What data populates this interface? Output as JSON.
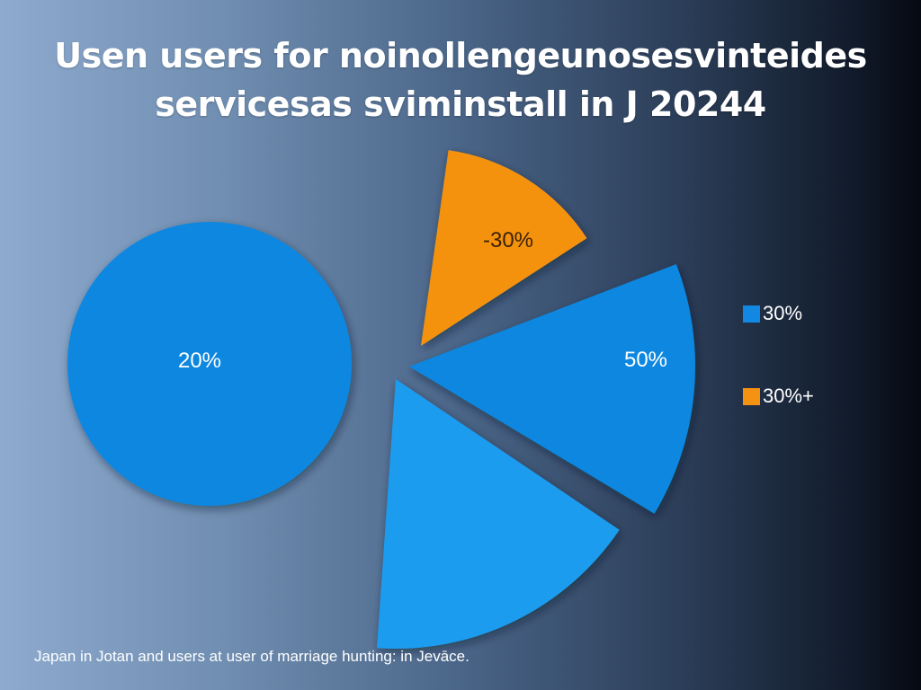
{
  "chart_data": {
    "type": "pie",
    "title": "Usen users for noinollengeunosesvinteides servicesas sviminstall in J 20244",
    "title_lines": [
      "Usen users for noinollengeunosesvinteides",
      "servicesas sviminstall in J 20244"
    ],
    "standalone_circle": {
      "label": "20%",
      "value": 20,
      "color": "#0a87e0"
    },
    "slices": [
      {
        "name": "orange-slice",
        "label": "-30%",
        "value": 30,
        "color": "#f59211",
        "label_color": "#3a2208"
      },
      {
        "name": "blue-slice",
        "label": "50%",
        "value": 50,
        "color": "#0a87e0",
        "label_color": "#ffffff"
      },
      {
        "name": "light-blue-slice",
        "label": "",
        "value": 20,
        "color": "#1d9cee",
        "label_color": "#ffffff"
      }
    ],
    "legend": [
      {
        "label": "30%",
        "color": "#1388e3"
      },
      {
        "label": "30%+",
        "color": "#f59211"
      }
    ],
    "legend_position": "right",
    "footnote": "Japan in Jotan and users at user of marriage hunting: in Jevāce."
  }
}
